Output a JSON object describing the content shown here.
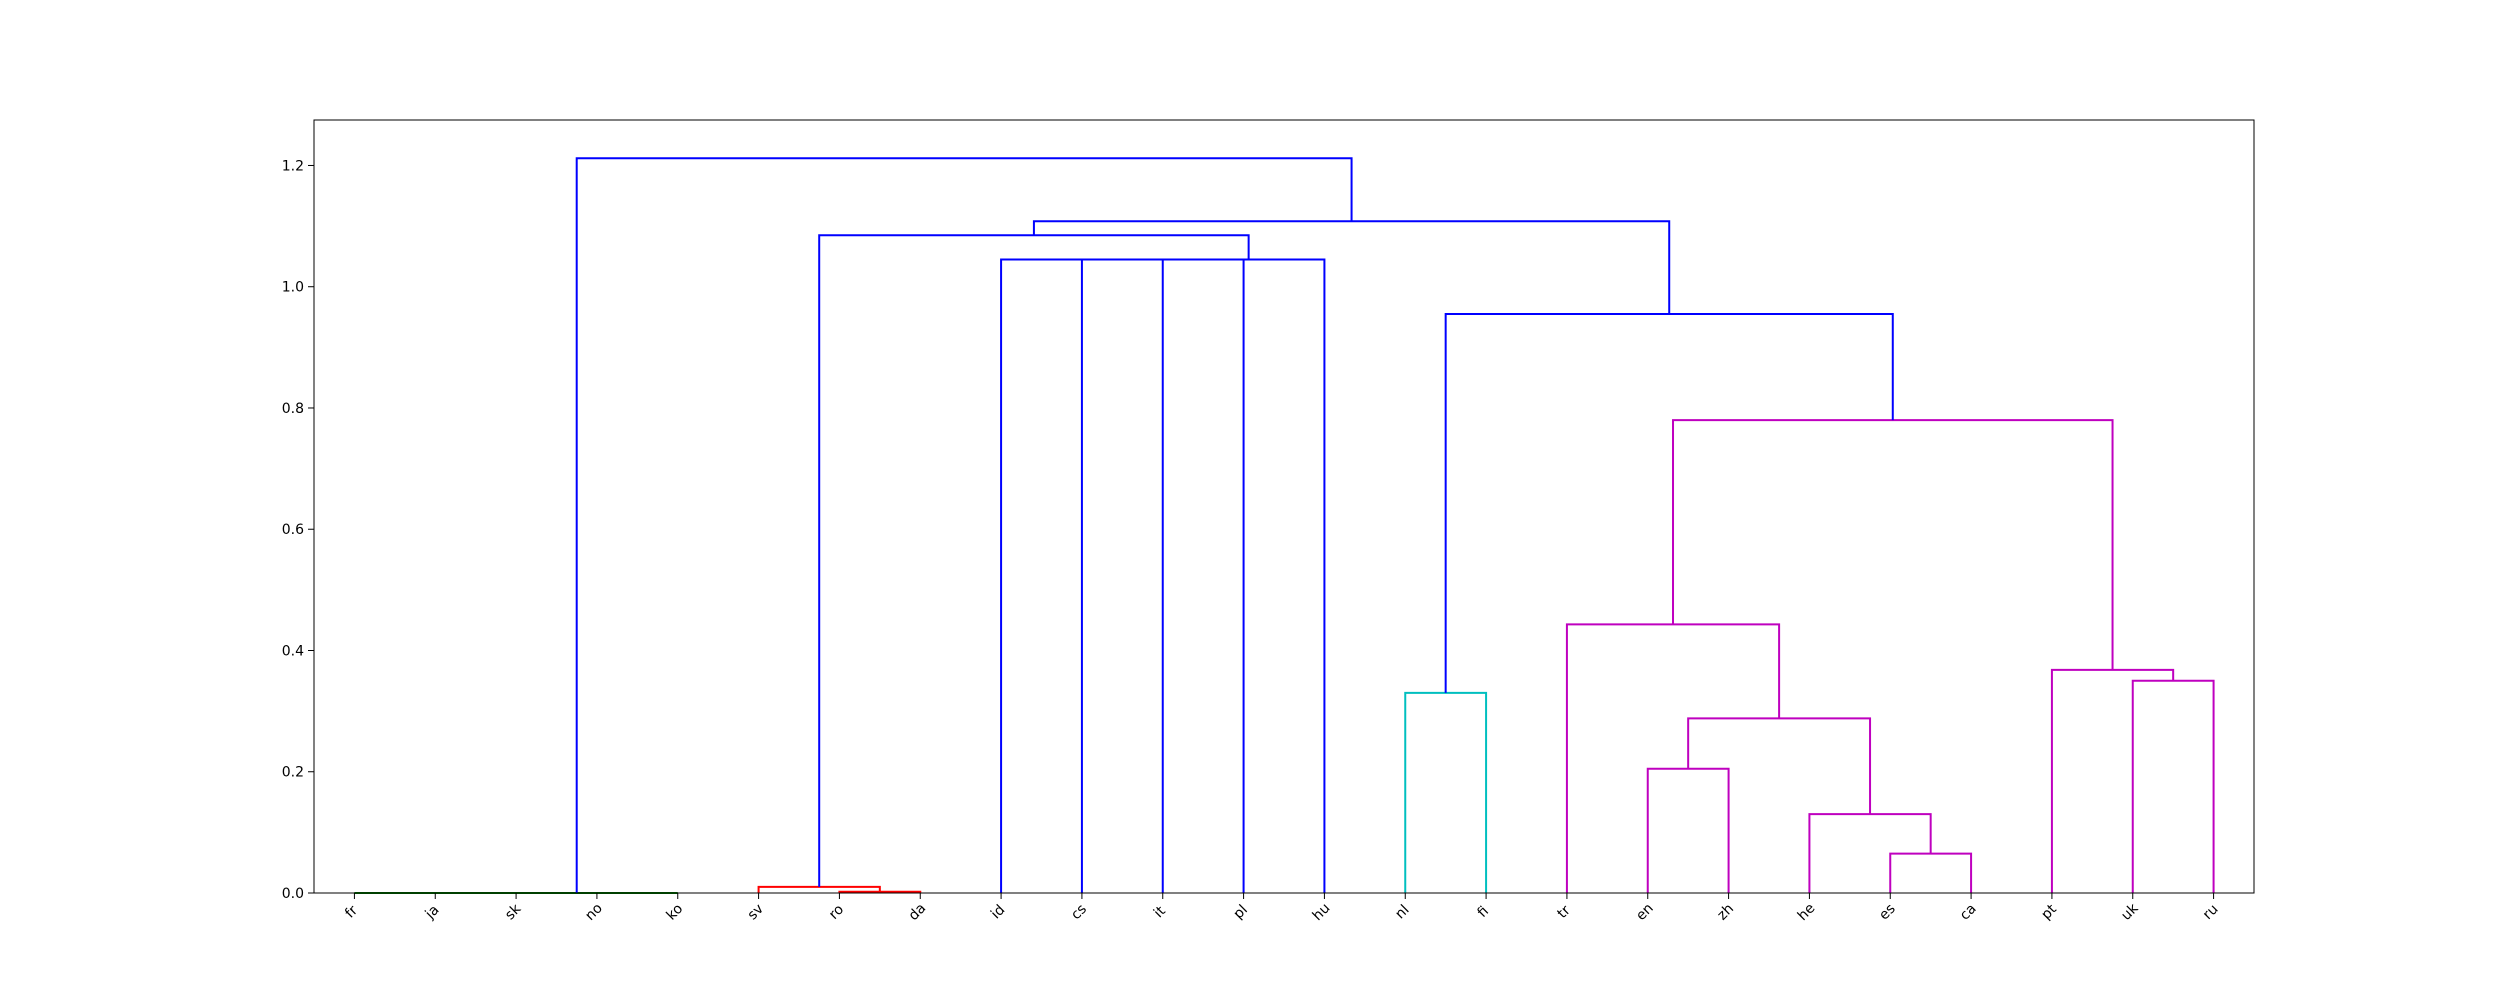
{
  "chart_data": {
    "type": "dendrogram",
    "title": "",
    "xlabel": "",
    "ylabel": "",
    "ylim": [
      0,
      1.275
    ],
    "yticks": [
      "0.0",
      "0.2",
      "0.4",
      "0.6",
      "0.8",
      "1.0",
      "1.2"
    ],
    "leaves": [
      "fr",
      "ja",
      "sk",
      "no",
      "ko",
      "sv",
      "ro",
      "da",
      "id",
      "cs",
      "it",
      "pl",
      "hu",
      "nl",
      "fi",
      "tr",
      "en",
      "zh",
      "he",
      "es",
      "ca",
      "pt",
      "uk",
      "ru"
    ],
    "merges": [
      {
        "left": "fr",
        "right": "ja",
        "height": 0.0,
        "color": "green"
      },
      {
        "left": "sk",
        "right": "no",
        "height": 0.0,
        "color": "green"
      },
      {
        "left": "fr-ja",
        "right": "sk-no",
        "height": 0.0,
        "color": "green"
      },
      {
        "left": "fr-ja-sk-no",
        "right": "ko",
        "height": 0.0,
        "color": "green"
      },
      {
        "left": "ro",
        "right": "da",
        "height": 0.002,
        "color": "red"
      },
      {
        "left": "sv",
        "right": "ro-da",
        "height": 0.01,
        "color": "red"
      },
      {
        "left": "id",
        "right": "cs",
        "height": 1.045,
        "color": "blue"
      },
      {
        "left": "id-cs",
        "right": "it",
        "height": 1.045,
        "color": "blue"
      },
      {
        "left": "id-cs-it",
        "right": "pl",
        "height": 1.045,
        "color": "blue"
      },
      {
        "left": "id-cs-it-pl",
        "right": "hu",
        "height": 1.045,
        "color": "blue"
      },
      {
        "left": "sv-ro-da",
        "right": "id-cs-it-pl-hu",
        "height": 1.085,
        "color": "blue"
      },
      {
        "left": "nl",
        "right": "fi",
        "height": 0.33,
        "color": "cyan"
      },
      {
        "left": "es",
        "right": "ca",
        "height": 0.065,
        "color": "magenta"
      },
      {
        "left": "he",
        "right": "es-ca",
        "height": 0.13,
        "color": "magenta"
      },
      {
        "left": "en",
        "right": "zh",
        "height": 0.205,
        "color": "magenta"
      },
      {
        "left": "en-zh",
        "right": "he-es-ca",
        "height": 0.288,
        "color": "magenta"
      },
      {
        "left": "tr",
        "right": "en-zh-he-es-ca",
        "height": 0.443,
        "color": "magenta"
      },
      {
        "left": "uk",
        "right": "ru",
        "height": 0.35,
        "color": "magenta"
      },
      {
        "left": "pt",
        "right": "uk-ru",
        "height": 0.368,
        "color": "magenta"
      },
      {
        "left": "tr-en-zh-he-es-ca",
        "right": "pt-uk-ru",
        "height": 0.78,
        "color": "magenta"
      },
      {
        "left": "nl-fi",
        "right": "tr-en-zh-he-es-ca-pt-uk-ru",
        "height": 0.955,
        "color": "blue"
      },
      {
        "left": "sv-ro-da-id-cs-it-pl-hu",
        "right": "nl-fi-tr-en-zh-he-es-ca-pt-uk-ru",
        "height": 1.108,
        "color": "blue"
      },
      {
        "left": "fr-ja-sk-no-ko",
        "right": "sv-ro-da-id-cs-it-pl-hu-nl-fi-tr-en-zh-he-es-ca-pt-uk-ru",
        "height": 1.212,
        "color": "blue"
      }
    ],
    "colors": {
      "green": "#008000",
      "red": "#ff0000",
      "cyan": "#00bfbf",
      "magenta": "#bf00bf",
      "blue": "#0000ff",
      "frame": "#000000"
    },
    "grid": false,
    "legend": "none"
  }
}
